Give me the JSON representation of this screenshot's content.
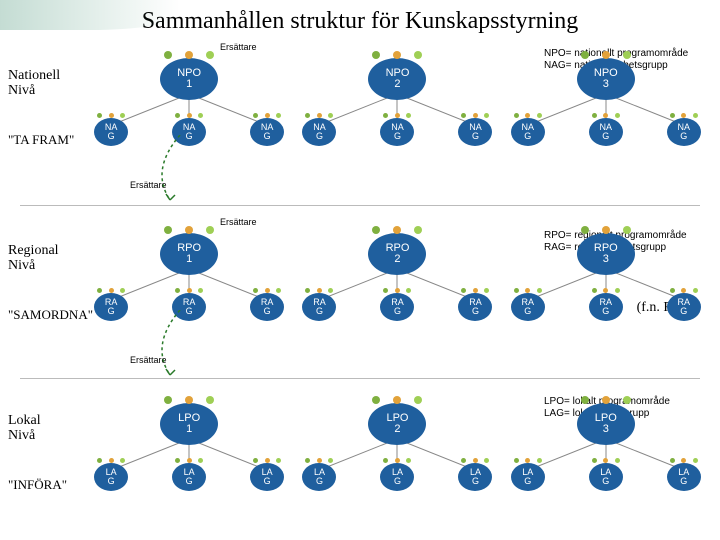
{
  "title": "Sammanhållen struktur för Kunskapsstyrning",
  "legends": {
    "national": "NPO= nationellt programområde\nNAG= nationell arbetsgrupp",
    "regional": "RPO= regionalt programområde\nRAG= regional arbetsgrupp",
    "local": "LPO= lokalt programområde\nLAG= lokal arbetsgrupp"
  },
  "rmk_note": "(f.n. RMK)",
  "ersattare_label": "Ersättare",
  "colors": {
    "node_blue": "#1f5f9e",
    "dot_green": "#7fb040",
    "dot_orange": "#e2a23a",
    "dot_green_light": "#9fcf55"
  },
  "levels": [
    {
      "level_label": "Nationell\nNivå",
      "action_label": "\"TA FRAM\"",
      "po_prefix": "NPO",
      "ag_label": "NA\nG",
      "clusters": [
        1,
        2,
        3
      ],
      "ersattare_after_first": true
    },
    {
      "level_label": "Regional\nNivå",
      "action_label": "\"SAMORDNA\"",
      "po_prefix": "RPO",
      "ag_label": "RA\nG",
      "clusters": [
        1,
        2,
        3
      ],
      "ersattare_after_first": true
    },
    {
      "level_label": "Lokal\nNivå",
      "action_label": "\"INFÖRA\"",
      "po_prefix": "LPO",
      "ag_label": "LA\nG",
      "clusters": [
        1,
        2,
        3
      ],
      "ersattare_after_first": false
    }
  ]
}
